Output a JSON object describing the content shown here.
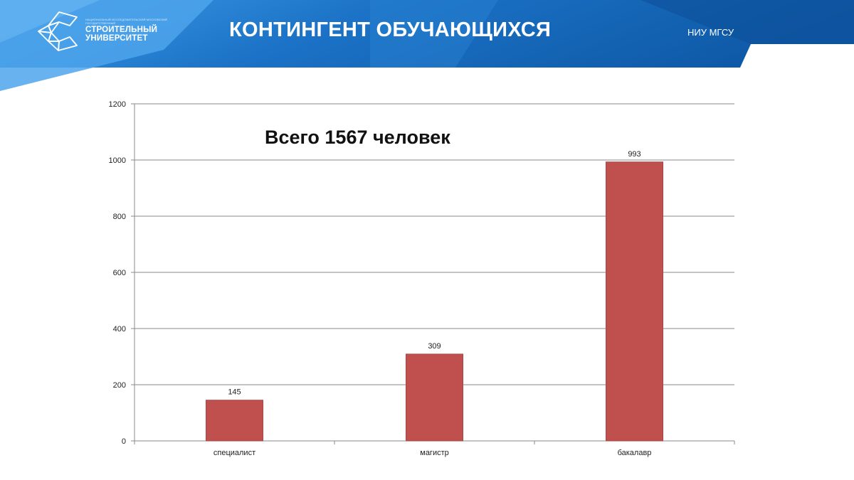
{
  "header": {
    "title": "КОНТИНГЕНТ ОБУЧАЮЩИХСЯ",
    "org_label": "НИУ МГСУ",
    "logo": {
      "line1": "СТРОИТЕЛЬНЫЙ",
      "line2": "УНИВЕРСИТЕТ",
      "small_text": "НАЦИОНАЛЬНЫЙ ИССЛЕДОВАТЕЛЬСКИЙ МОСКОВСКИЙ ГОСУДАРСТВЕННЫЙ"
    },
    "colors": {
      "primary": "#1d72c8",
      "secondary": "#0e5db0",
      "light": "#4aa3ea"
    }
  },
  "chart_data": {
    "type": "bar",
    "annotation": "Всего 1567 человек",
    "categories": [
      "специалист",
      "магистр",
      "бакалавр"
    ],
    "series": [
      {
        "values": [
          145,
          309,
          993
        ],
        "color": "#c0504d"
      }
    ],
    "data_labels": [
      "145",
      "309",
      "993"
    ],
    "ylim": [
      0,
      1200
    ],
    "yticks": [
      "0",
      "200",
      "400",
      "600",
      "800",
      "1000",
      "1200"
    ],
    "grid": true,
    "legend": "none"
  }
}
